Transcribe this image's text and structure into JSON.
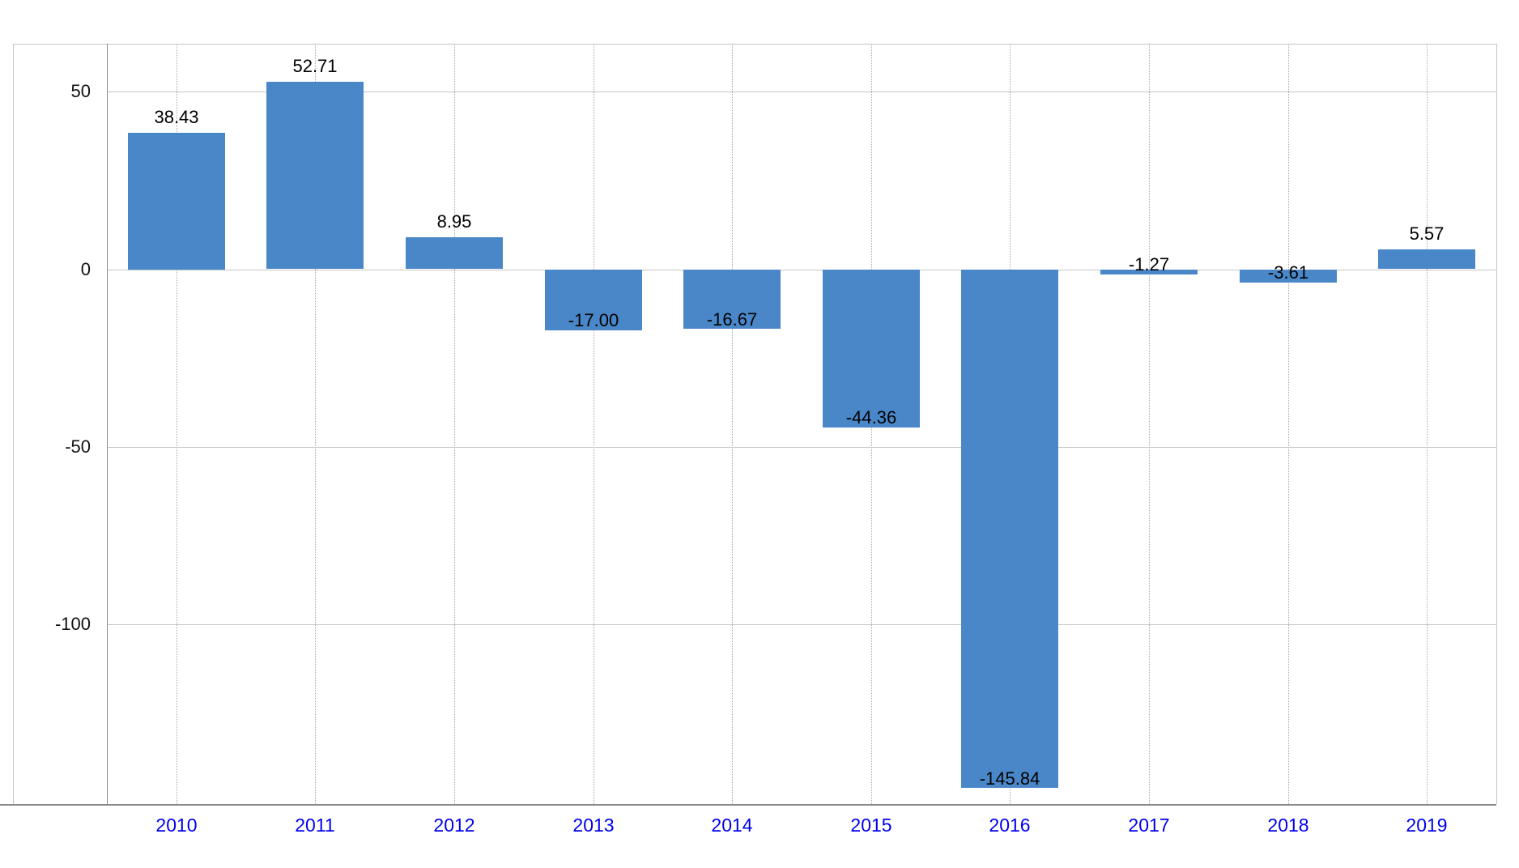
{
  "chart_data": {
    "type": "bar",
    "title": "",
    "xlabel": "",
    "ylabel": "",
    "categories": [
      "2010",
      "2011",
      "2012",
      "2013",
      "2014",
      "2015",
      "2016",
      "2017",
      "2018",
      "2019"
    ],
    "values": [
      38.43,
      52.71,
      8.95,
      -17.0,
      -16.67,
      -44.36,
      -145.84,
      -1.27,
      -3.61,
      5.57
    ],
    "value_labels": [
      "38.43",
      "52.71",
      "8.95",
      "-17.00",
      "-16.67",
      "-44.36",
      "-145.84",
      "-1.27",
      "-3.61",
      "5.57"
    ],
    "ylim": [
      -150.5,
      63.5
    ],
    "yticks": [
      50,
      0,
      -50,
      -100
    ],
    "ytick_labels": [
      "50",
      "0",
      "-50",
      "-100"
    ],
    "grid": {
      "horizontal_solid": true,
      "vertical_dotted": true
    },
    "legend_position": "none",
    "colors": {
      "bar": "#4a87c8",
      "value_label": "#000000",
      "x_tick": "#0000ee",
      "y_tick": "#111111",
      "h_grid": "#c6c6c6",
      "v_grid": "#a8a8a8",
      "axis": "#8a8a8a",
      "frame": "#c6c6c6",
      "background": "#ffffff"
    }
  }
}
